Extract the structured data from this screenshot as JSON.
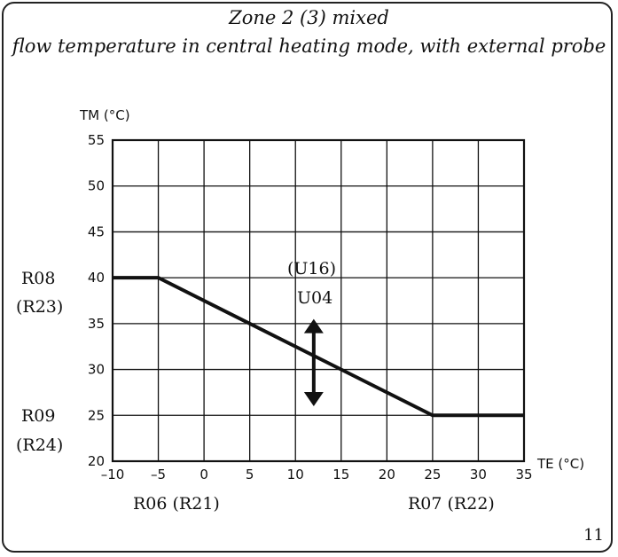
{
  "title_line1": "Zone 2 (3) mixed",
  "title_line2": "flow temperature in central heating mode, with external probe",
  "page_number": "11",
  "chart_data": {
    "type": "line",
    "xlabel": "TE (°C)",
    "ylabel": "TM (°C)",
    "xlim": [
      -10,
      35
    ],
    "ylim": [
      20,
      55
    ],
    "x_ticks": [
      -10,
      -5,
      0,
      5,
      10,
      15,
      20,
      25,
      30,
      35
    ],
    "y_ticks": [
      20,
      25,
      30,
      35,
      40,
      45,
      50,
      55
    ],
    "grid": true,
    "series": [
      {
        "x": [
          -10,
          -5,
          25,
          35
        ],
        "y": [
          40,
          40,
          25,
          25
        ]
      }
    ],
    "annotations": {
      "max_flow": "R08",
      "max_flow_alt": "(R23)",
      "min_flow": "R09",
      "min_flow_alt": "(R24)",
      "min_ext": "R06 (R21)",
      "max_ext": "R07 (R22)",
      "offset_alt": "(U16)",
      "offset": "U04"
    },
    "offset_arrow": {
      "x": 12,
      "y_from": 26,
      "y_to": 35.5
    }
  }
}
